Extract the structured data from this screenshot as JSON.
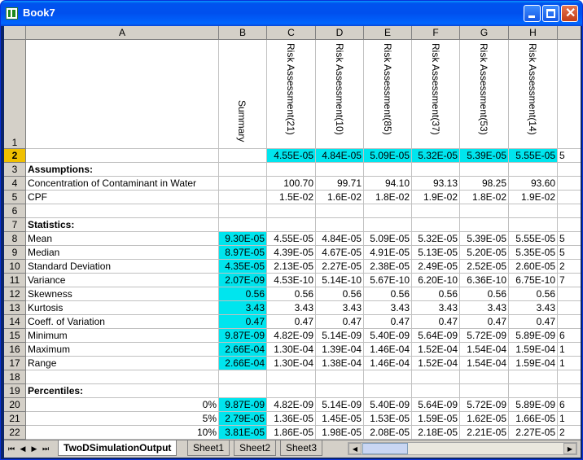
{
  "window": {
    "title": "Book7"
  },
  "columns": [
    "A",
    "B",
    "C",
    "D",
    "E",
    "F",
    "G",
    "H"
  ],
  "row1": {
    "B": "Summary",
    "C": "Risk Assessment(21)",
    "D": "Risk Assessment(10)",
    "E": "Risk Assessment(85)",
    "F": "Risk Assessment(37)",
    "G": "Risk Assessment(53)",
    "H": "Risk Assessment(14)"
  },
  "rows": [
    {
      "n": "2",
      "a": "",
      "b": "",
      "c": [
        "4.55E-05",
        "4.84E-05",
        "5.09E-05",
        "5.32E-05",
        "5.39E-05",
        "5.55E-05"
      ],
      "i": "5"
    },
    {
      "n": "3",
      "a": "Assumptions:",
      "b": "",
      "c": [
        "",
        "",
        "",
        "",
        "",
        ""
      ],
      "i": "",
      "bold": true
    },
    {
      "n": "4",
      "a": "Concentration of Contaminant in Water",
      "b": "",
      "c": [
        "100.70",
        "99.71",
        "94.10",
        "93.13",
        "98.25",
        "93.60"
      ],
      "i": ""
    },
    {
      "n": "5",
      "a": "CPF",
      "b": "",
      "c": [
        "1.5E-02",
        "1.6E-02",
        "1.8E-02",
        "1.9E-02",
        "1.8E-02",
        "1.9E-02"
      ],
      "i": ""
    },
    {
      "n": "6",
      "a": "",
      "b": "",
      "c": [
        "",
        "",
        "",
        "",
        "",
        ""
      ],
      "i": ""
    },
    {
      "n": "7",
      "a": "Statistics:",
      "b": "",
      "c": [
        "",
        "",
        "",
        "",
        "",
        ""
      ],
      "i": "",
      "bold": true
    },
    {
      "n": "8",
      "a": "Mean",
      "b": "9.30E-05",
      "c": [
        "4.55E-05",
        "4.84E-05",
        "5.09E-05",
        "5.32E-05",
        "5.39E-05",
        "5.55E-05"
      ],
      "i": "5"
    },
    {
      "n": "9",
      "a": "Median",
      "b": "8.97E-05",
      "c": [
        "4.39E-05",
        "4.67E-05",
        "4.91E-05",
        "5.13E-05",
        "5.20E-05",
        "5.35E-05"
      ],
      "i": "5"
    },
    {
      "n": "10",
      "a": "Standard Deviation",
      "b": "4.35E-05",
      "c": [
        "2.13E-05",
        "2.27E-05",
        "2.38E-05",
        "2.49E-05",
        "2.52E-05",
        "2.60E-05"
      ],
      "i": "2"
    },
    {
      "n": "11",
      "a": "Variance",
      "b": "2.07E-09",
      "c": [
        "4.53E-10",
        "5.14E-10",
        "5.67E-10",
        "6.20E-10",
        "6.36E-10",
        "6.75E-10"
      ],
      "i": "7"
    },
    {
      "n": "12",
      "a": "Skewness",
      "b": "0.56",
      "c": [
        "0.56",
        "0.56",
        "0.56",
        "0.56",
        "0.56",
        "0.56"
      ],
      "i": ""
    },
    {
      "n": "13",
      "a": "Kurtosis",
      "b": "3.43",
      "c": [
        "3.43",
        "3.43",
        "3.43",
        "3.43",
        "3.43",
        "3.43"
      ],
      "i": ""
    },
    {
      "n": "14",
      "a": "Coeff. of Variation",
      "b": "0.47",
      "c": [
        "0.47",
        "0.47",
        "0.47",
        "0.47",
        "0.47",
        "0.47"
      ],
      "i": ""
    },
    {
      "n": "15",
      "a": "Minimum",
      "b": "9.87E-09",
      "c": [
        "4.82E-09",
        "5.14E-09",
        "5.40E-09",
        "5.64E-09",
        "5.72E-09",
        "5.89E-09"
      ],
      "i": "6"
    },
    {
      "n": "16",
      "a": "Maximum",
      "b": "2.66E-04",
      "c": [
        "1.30E-04",
        "1.39E-04",
        "1.46E-04",
        "1.52E-04",
        "1.54E-04",
        "1.59E-04"
      ],
      "i": "1"
    },
    {
      "n": "17",
      "a": "Range",
      "b": "2.66E-04",
      "c": [
        "1.30E-04",
        "1.38E-04",
        "1.46E-04",
        "1.52E-04",
        "1.54E-04",
        "1.59E-04"
      ],
      "i": "1"
    },
    {
      "n": "18",
      "a": "",
      "b": "",
      "c": [
        "",
        "",
        "",
        "",
        "",
        ""
      ],
      "i": ""
    },
    {
      "n": "19",
      "a": "Percentiles:",
      "b": "",
      "c": [
        "",
        "",
        "",
        "",
        "",
        ""
      ],
      "i": "",
      "bold": true
    },
    {
      "n": "20",
      "a": "0%",
      "b": "9.87E-09",
      "c": [
        "4.82E-09",
        "5.14E-09",
        "5.40E-09",
        "5.64E-09",
        "5.72E-09",
        "5.89E-09"
      ],
      "i": "6",
      "aright": true
    },
    {
      "n": "21",
      "a": "5%",
      "b": "2.79E-05",
      "c": [
        "1.36E-05",
        "1.45E-05",
        "1.53E-05",
        "1.59E-05",
        "1.62E-05",
        "1.66E-05"
      ],
      "i": "1",
      "aright": true
    },
    {
      "n": "22",
      "a": "10%",
      "b": "3.81E-05",
      "c": [
        "1.86E-05",
        "1.98E-05",
        "2.08E-05",
        "2.18E-05",
        "2.21E-05",
        "2.27E-05"
      ],
      "i": "2",
      "aright": true
    }
  ],
  "tabs": {
    "active": "TwoDSimulationOutput",
    "others": [
      "Sheet1",
      "Sheet2",
      "Sheet3"
    ]
  },
  "colors": {
    "highlight": "#00e5ee",
    "titlebar": "#0054e3",
    "header": "#d4d0c8",
    "selected_header": "#f0c000"
  }
}
